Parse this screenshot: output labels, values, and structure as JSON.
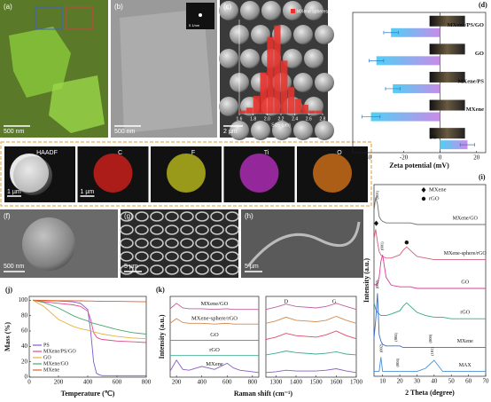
{
  "panels": {
    "a": {
      "label": "(a)",
      "scale": "500 nm"
    },
    "b": {
      "label": "(b)",
      "scale": "500 nm",
      "inset_scale": "5 1/nm"
    },
    "c": {
      "label": "(c)",
      "scale": "2 µm"
    },
    "e": {
      "label": "(e)",
      "maps": [
        {
          "label": "HAADF",
          "scale": "1 µm",
          "color": "#e8e8e8"
        },
        {
          "label": "C",
          "scale": "1 µm",
          "color": "#e0201c"
        },
        {
          "label": "F",
          "color": "#c8c81e"
        },
        {
          "label": "Ti",
          "color": "#c030c8"
        },
        {
          "label": "O",
          "color": "#e07818"
        }
      ]
    },
    "f": {
      "label": "(f)",
      "scale": "500 nm"
    },
    "g": {
      "label": "(g)",
      "scale": "5 µm"
    },
    "h": {
      "label": "(h)",
      "scale": "5 µm"
    }
  },
  "chart_data": [
    {
      "type": "histogram",
      "legend": "MXene spheres",
      "xlabel": "Size (µm)",
      "bins": [
        1.6,
        1.7,
        1.8,
        1.9,
        2.0,
        2.1,
        2.2,
        2.3,
        2.4,
        2.5,
        2.6,
        2.7,
        2.8
      ],
      "counts": [
        1,
        2,
        6,
        14,
        26,
        30,
        18,
        9,
        5,
        3,
        1,
        1
      ],
      "color": "#e8322e",
      "xlim": [
        1.6,
        2.8
      ],
      "ylim": [
        0,
        32
      ],
      "xticks": [
        1.6,
        1.8,
        {
          "value": 2,
          "label": "2.0"
        },
        2.2,
        2.4,
        2.6,
        2.8
      ]
    },
    {
      "type": "hbar",
      "panel": "(d)",
      "xlabel": "Zeta potential (mV)",
      "categories": [
        "MXene/PS/GO",
        "GO",
        "MXene/PS",
        "MXene",
        "PS"
      ],
      "values": [
        -27,
        -35,
        -26,
        -38,
        15
      ],
      "errors": [
        4,
        4,
        4,
        5,
        4
      ],
      "gradient": [
        "#4fd0f5",
        "#c98be8"
      ],
      "xlim": [
        -48,
        25
      ],
      "xticks": [
        -40,
        -20,
        0,
        20
      ]
    },
    {
      "type": "line",
      "panel": "(i)",
      "xlabel": "2 Theta (degree)",
      "ylabel": "Intensity (a.u.)",
      "x": [
        5,
        6,
        7,
        8,
        9,
        10,
        12,
        15,
        20,
        22,
        24,
        26,
        30,
        35,
        40,
        45,
        50,
        60,
        70
      ],
      "series": [
        {
          "name": "MXene/GO",
          "color": "#707070",
          "values": [
            10.4,
            11.2,
            10.8,
            10.0,
            9.8,
            9.7,
            9.6,
            9.6,
            9.6,
            9.6,
            9.6,
            9.6,
            9.5,
            9.5,
            9.5,
            9.5,
            9.5,
            9.5,
            9.5
          ]
        },
        {
          "name": "MXene-sphere/rGO",
          "color": "#d2607a",
          "values": [
            8.6,
            9.2,
            8.4,
            7.8,
            7.6,
            7.5,
            7.4,
            7.4,
            7.6,
            7.9,
            8.1,
            7.9,
            7.5,
            7.4,
            7.3,
            7.3,
            7.3,
            7.3,
            7.3
          ]
        },
        {
          "name": "GO",
          "color": "#e0389a",
          "values": [
            5.8,
            5.7,
            5.8,
            6.2,
            7.2,
            7.6,
            6.2,
            5.7,
            5.6,
            5.6,
            5.6,
            5.6,
            5.5,
            5.5,
            5.5,
            5.5,
            5.5,
            5.5,
            5.5
          ]
        },
        {
          "name": "rGO",
          "color": "#3aa880",
          "values": [
            4.6,
            4.2,
            4.0,
            3.9,
            3.8,
            3.8,
            3.8,
            3.9,
            4.1,
            4.4,
            4.6,
            4.4,
            4.0,
            3.8,
            3.7,
            3.7,
            3.6,
            3.6,
            3.6
          ]
        },
        {
          "name": "MXene",
          "color": "#3a6ad0",
          "values": [
            2.4,
            3.5,
            5.2,
            2.6,
            2.2,
            2.0,
            1.9,
            1.9,
            1.9,
            1.8,
            1.8,
            1.8,
            1.8,
            1.8,
            1.8,
            1.8,
            1.8,
            1.8,
            1.8
          ]
        },
        {
          "name": "MAX",
          "color": "#4a90d8",
          "values": [
            0.3,
            0.3,
            0.3,
            0.3,
            1.2,
            0.3,
            0.3,
            0.3,
            0.3,
            0.3,
            0.3,
            0.3,
            0.3,
            0.5,
            1.0,
            0.3,
            0.3,
            0.3,
            0.3
          ]
        }
      ],
      "markers": [
        {
          "name": "MXene",
          "symbol": "diamond"
        },
        {
          "name": "rGO",
          "symbol": "circle"
        }
      ],
      "annotations": [
        "(001)",
        "(001)",
        "(002)",
        "(004)",
        "(008)",
        "(002)",
        "(004)",
        "(101)"
      ],
      "xlim": [
        5,
        70
      ],
      "ylim": [
        0,
        12
      ],
      "xticks": [
        10,
        20,
        30,
        40,
        50,
        60,
        70
      ]
    },
    {
      "type": "line",
      "panel": "(j)",
      "xlabel": "Temperature (℃)",
      "ylabel": "Mass (%)",
      "x": [
        25,
        100,
        200,
        300,
        350,
        400,
        420,
        440,
        460,
        480,
        500,
        600,
        700,
        800
      ],
      "series": [
        {
          "name": "PS",
          "color": "#7a5ad0",
          "values": [
            100,
            99.5,
            99,
            98,
            96,
            88,
            60,
            20,
            5,
            3,
            2,
            2,
            2,
            2
          ]
        },
        {
          "name": "MXene/PS/GO",
          "color": "#e04a8a",
          "values": [
            100,
            98,
            96,
            94,
            92,
            86,
            75,
            58,
            52,
            50,
            49,
            47,
            46,
            45
          ]
        },
        {
          "name": "GO",
          "color": "#e8b040",
          "values": [
            100,
            92,
            75,
            66,
            63,
            61,
            60,
            59,
            58,
            57,
            56,
            53,
            51,
            50
          ]
        },
        {
          "name": "MXene/GO",
          "color": "#4aa870",
          "values": [
            100,
            97,
            90,
            80,
            76,
            73,
            71,
            70,
            69,
            68,
            67,
            62,
            58,
            56
          ]
        },
        {
          "name": "MXene",
          "color": "#e0602a",
          "values": [
            100,
            99.8,
            99.5,
            99.3,
            99.2,
            99,
            99,
            98.9,
            98.8,
            98.8,
            98.7,
            98.5,
            98.3,
            98
          ]
        }
      ],
      "xlim": [
        0,
        800
      ],
      "ylim": [
        0,
        105
      ],
      "xticks": [
        0,
        200,
        400,
        600,
        800
      ],
      "yticks": [
        0,
        20,
        40,
        60,
        80,
        100
      ],
      "legend": "lower-left"
    },
    {
      "type": "line",
      "panel": "(k)",
      "xlabel": "Raman shift (cm⁻¹)",
      "ylabel": "Intensity (a.u.)",
      "x": [
        150,
        200,
        250,
        300,
        400,
        500,
        600,
        650,
        700,
        800,
        850
      ],
      "series": [
        {
          "name": "MXene/GO",
          "color": "#c060a0",
          "values": [
            8.9,
            9.6,
            9.0,
            8.9,
            8.9,
            8.8,
            8.9,
            8.8,
            8.8,
            8.8,
            8.8
          ]
        },
        {
          "name": "MXene-sphere/rGO",
          "color": "#d08a50",
          "values": [
            7.0,
            7.6,
            7.1,
            7.0,
            7.0,
            6.9,
            7.0,
            6.9,
            6.9,
            6.9,
            6.9
          ]
        },
        {
          "name": "GO",
          "color": "#e04a6a",
          "values": [
            4.8,
            4.8,
            4.8,
            4.8,
            4.8,
            4.8,
            4.8,
            4.8,
            4.8,
            4.8,
            4.8
          ]
        },
        {
          "name": "rGO",
          "color": "#40a890",
          "values": [
            2.8,
            2.8,
            2.8,
            2.8,
            2.8,
            2.8,
            2.8,
            2.8,
            2.8,
            2.8,
            2.8
          ]
        },
        {
          "name": "MXene",
          "color": "#8a60c0",
          "values": [
            0.8,
            2.2,
            1.0,
            0.9,
            1.4,
            1.0,
            1.8,
            1.2,
            0.9,
            0.7,
            0.6
          ]
        }
      ],
      "xlim": [
        150,
        850
      ],
      "ylim": [
        0,
        10.5
      ],
      "xticks": [
        200,
        400,
        600,
        800
      ]
    },
    {
      "type": "line",
      "annotations": [
        "D",
        "G"
      ],
      "x": [
        1250,
        1300,
        1350,
        1400,
        1500,
        1550,
        1600,
        1650,
        1700
      ],
      "series": [
        {
          "color": "#c060a0",
          "values": [
            8.8,
            9.1,
            9.5,
            9.2,
            9.0,
            9.2,
            9.6,
            9.2,
            8.8
          ]
        },
        {
          "color": "#d08a50",
          "values": [
            7.0,
            7.3,
            7.8,
            7.4,
            7.2,
            7.4,
            7.9,
            7.4,
            7.0
          ]
        },
        {
          "color": "#e04a6a",
          "values": [
            4.9,
            5.2,
            5.7,
            5.4,
            5.2,
            5.5,
            6.0,
            5.4,
            5.0
          ]
        },
        {
          "color": "#40a890",
          "values": [
            2.9,
            3.1,
            3.4,
            3.2,
            3.0,
            3.1,
            3.3,
            3.0,
            2.9
          ]
        },
        {
          "color": "#8a60c0",
          "values": [
            0.6,
            0.7,
            0.9,
            0.8,
            0.8,
            0.9,
            1.1,
            0.8,
            0.6
          ]
        }
      ],
      "xlim": [
        1250,
        1700
      ],
      "ylim": [
        0,
        10.5
      ],
      "xticks": [
        1300,
        1400,
        1500,
        1600,
        1700
      ]
    }
  ]
}
